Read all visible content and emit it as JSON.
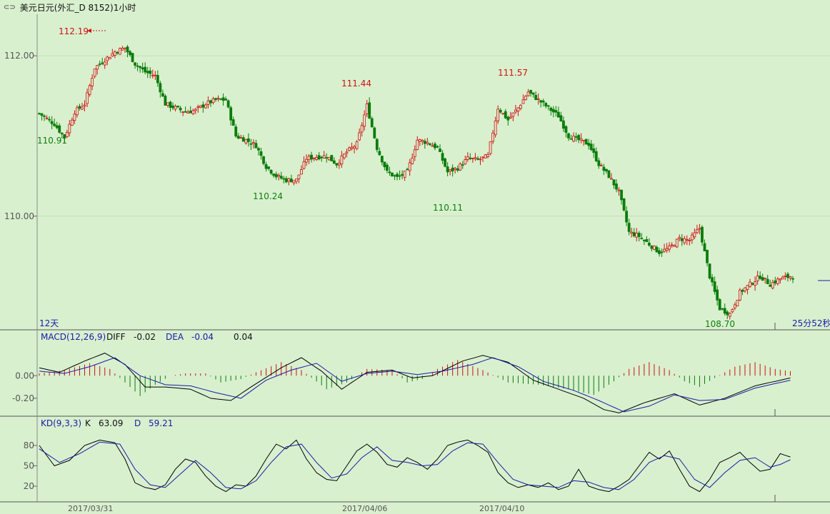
{
  "window": {
    "title": "美元日元(外汇_D 8152)1小时",
    "icon": "link-icon"
  },
  "colors": {
    "background": "#d9f0cf",
    "up": "#d01010",
    "down": "#0b7d0b",
    "line1": "#000000",
    "line2": "#1a1aa8",
    "annotation_high": "#d01010",
    "annotation_low": "#0b7d0b"
  },
  "chart_data": [
    {
      "type": "candlestick",
      "title": "",
      "yticks": [
        "112.00",
        "110.00"
      ],
      "ylim": [
        108.6,
        112.5
      ],
      "x_labels": [
        "2017/03/31",
        "2017/04/06",
        "2017/04/10"
      ],
      "corner_left": "12天",
      "corner_right": "25分52秒",
      "annotations": [
        {
          "label": "112.19",
          "kind": "high"
        },
        {
          "label": "110.91",
          "kind": "low"
        },
        {
          "label": "110.24",
          "kind": "low"
        },
        {
          "label": "111.44",
          "kind": "high"
        },
        {
          "label": "110.11",
          "kind": "low"
        },
        {
          "label": "111.57",
          "kind": "high"
        },
        {
          "label": "108.70",
          "kind": "low"
        }
      ],
      "close_path": [
        [
          0,
          111.28
        ],
        [
          6,
          111.15
        ],
        [
          10,
          110.98
        ],
        [
          14,
          111.3
        ],
        [
          18,
          111.4
        ],
        [
          22,
          111.85
        ],
        [
          26,
          111.95
        ],
        [
          30,
          112.05
        ],
        [
          34,
          112.1
        ],
        [
          38,
          111.9
        ],
        [
          42,
          111.8
        ],
        [
          46,
          111.75
        ],
        [
          50,
          111.4
        ],
        [
          54,
          111.35
        ],
        [
          58,
          111.3
        ],
        [
          62,
          111.32
        ],
        [
          66,
          111.4
        ],
        [
          70,
          111.45
        ],
        [
          74,
          111.45
        ],
        [
          78,
          111.0
        ],
        [
          82,
          110.95
        ],
        [
          86,
          110.88
        ],
        [
          90,
          110.62
        ],
        [
          94,
          110.5
        ],
        [
          98,
          110.45
        ],
        [
          102,
          110.45
        ],
        [
          106,
          110.72
        ],
        [
          110,
          110.74
        ],
        [
          114,
          110.75
        ],
        [
          118,
          110.65
        ],
        [
          122,
          110.8
        ],
        [
          126,
          110.9
        ],
        [
          130,
          111.38
        ],
        [
          134,
          110.85
        ],
        [
          138,
          110.55
        ],
        [
          142,
          110.48
        ],
        [
          146,
          110.55
        ],
        [
          150,
          110.95
        ],
        [
          154,
          110.92
        ],
        [
          158,
          110.85
        ],
        [
          162,
          110.55
        ],
        [
          166,
          110.6
        ],
        [
          170,
          110.72
        ],
        [
          174,
          110.7
        ],
        [
          178,
          110.75
        ],
        [
          182,
          111.35
        ],
        [
          186,
          111.2
        ],
        [
          190,
          111.35
        ],
        [
          194,
          111.55
        ],
        [
          198,
          111.45
        ],
        [
          202,
          111.35
        ],
        [
          206,
          111.25
        ],
        [
          210,
          111.0
        ],
        [
          214,
          110.95
        ],
        [
          218,
          110.9
        ],
        [
          222,
          110.65
        ],
        [
          226,
          110.5
        ],
        [
          230,
          110.3
        ],
        [
          234,
          109.8
        ],
        [
          238,
          109.75
        ],
        [
          242,
          109.65
        ],
        [
          246,
          109.55
        ],
        [
          250,
          109.6
        ],
        [
          254,
          109.72
        ],
        [
          258,
          109.7
        ],
        [
          262,
          109.85
        ],
        [
          266,
          109.25
        ],
        [
          270,
          108.85
        ],
        [
          274,
          108.78
        ],
        [
          278,
          109.05
        ],
        [
          282,
          109.15
        ],
        [
          286,
          109.25
        ],
        [
          290,
          109.15
        ],
        [
          294,
          109.22
        ],
        [
          298,
          109.25
        ]
      ]
    },
    {
      "type": "macd",
      "title": "MACD(12,26,9)",
      "series": [
        {
          "name": "DIFF",
          "value_label": "-0.02"
        },
        {
          "name": "DEA",
          "value_label": "-0.04"
        },
        {
          "name": "MACD",
          "value_label": "0.04"
        }
      ],
      "yticks": [
        "0.00",
        "-0.20"
      ],
      "ylim": [
        -0.34,
        0.28
      ],
      "hist_path": [
        [
          0,
          0.02
        ],
        [
          10,
          0.05
        ],
        [
          20,
          0.11
        ],
        [
          28,
          0.06
        ],
        [
          32,
          -0.02
        ],
        [
          40,
          -0.18
        ],
        [
          46,
          -0.08
        ],
        [
          52,
          0.0
        ],
        [
          58,
          0.02
        ],
        [
          66,
          0.02
        ],
        [
          72,
          -0.06
        ],
        [
          80,
          -0.03
        ],
        [
          86,
          0.03
        ],
        [
          96,
          0.12
        ],
        [
          104,
          0.05
        ],
        [
          114,
          -0.12
        ],
        [
          122,
          -0.06
        ],
        [
          130,
          0.06
        ],
        [
          140,
          0.05
        ],
        [
          146,
          -0.06
        ],
        [
          152,
          -0.03
        ],
        [
          158,
          0.06
        ],
        [
          166,
          0.14
        ],
        [
          176,
          0.05
        ],
        [
          186,
          -0.06
        ],
        [
          198,
          -0.08
        ],
        [
          210,
          -0.12
        ],
        [
          220,
          -0.17
        ],
        [
          228,
          -0.05
        ],
        [
          234,
          0.06
        ],
        [
          242,
          0.12
        ],
        [
          250,
          0.05
        ],
        [
          256,
          -0.05
        ],
        [
          262,
          -0.1
        ],
        [
          268,
          -0.02
        ],
        [
          276,
          0.08
        ],
        [
          284,
          0.12
        ],
        [
          292,
          0.06
        ],
        [
          298,
          0.04
        ]
      ],
      "diff_path": [
        [
          0,
          0.07
        ],
        [
          8,
          0.03
        ],
        [
          18,
          0.13
        ],
        [
          26,
          0.2
        ],
        [
          34,
          0.1
        ],
        [
          42,
          -0.1
        ],
        [
          50,
          -0.1
        ],
        [
          60,
          -0.12
        ],
        [
          68,
          -0.2
        ],
        [
          76,
          -0.22
        ],
        [
          84,
          -0.1
        ],
        [
          96,
          0.07
        ],
        [
          104,
          0.16
        ],
        [
          112,
          0.04
        ],
        [
          120,
          -0.12
        ],
        [
          130,
          0.03
        ],
        [
          140,
          0.05
        ],
        [
          148,
          -0.02
        ],
        [
          156,
          0.0
        ],
        [
          168,
          0.13
        ],
        [
          176,
          0.18
        ],
        [
          186,
          0.12
        ],
        [
          196,
          -0.04
        ],
        [
          206,
          -0.12
        ],
        [
          216,
          -0.2
        ],
        [
          224,
          -0.3
        ],
        [
          230,
          -0.33
        ],
        [
          240,
          -0.24
        ],
        [
          252,
          -0.16
        ],
        [
          262,
          -0.26
        ],
        [
          272,
          -0.2
        ],
        [
          284,
          -0.09
        ],
        [
          298,
          -0.02
        ]
      ],
      "dea_path": [
        [
          0,
          0.04
        ],
        [
          10,
          0.02
        ],
        [
          20,
          0.08
        ],
        [
          30,
          0.16
        ],
        [
          40,
          0.0
        ],
        [
          50,
          -0.08
        ],
        [
          60,
          -0.09
        ],
        [
          70,
          -0.15
        ],
        [
          80,
          -0.2
        ],
        [
          90,
          -0.04
        ],
        [
          100,
          0.05
        ],
        [
          110,
          0.11
        ],
        [
          120,
          -0.05
        ],
        [
          130,
          0.02
        ],
        [
          140,
          0.04
        ],
        [
          150,
          0.01
        ],
        [
          160,
          0.04
        ],
        [
          172,
          0.1
        ],
        [
          180,
          0.16
        ],
        [
          190,
          0.08
        ],
        [
          200,
          -0.05
        ],
        [
          212,
          -0.13
        ],
        [
          222,
          -0.22
        ],
        [
          232,
          -0.32
        ],
        [
          242,
          -0.27
        ],
        [
          252,
          -0.17
        ],
        [
          262,
          -0.22
        ],
        [
          272,
          -0.21
        ],
        [
          284,
          -0.11
        ],
        [
          298,
          -0.04
        ]
      ]
    },
    {
      "type": "kd",
      "title": "KD(9,3,3)",
      "series": [
        {
          "name": "K",
          "value_label": "63.09"
        },
        {
          "name": "D",
          "value_label": "59.21"
        }
      ],
      "yticks": [
        "80",
        "50",
        "20"
      ],
      "ylim": [
        0,
        100
      ],
      "k_path": [
        [
          0,
          80
        ],
        [
          6,
          50
        ],
        [
          12,
          58
        ],
        [
          18,
          80
        ],
        [
          24,
          88
        ],
        [
          30,
          84
        ],
        [
          34,
          60
        ],
        [
          38,
          25
        ],
        [
          42,
          18
        ],
        [
          46,
          15
        ],
        [
          50,
          22
        ],
        [
          54,
          45
        ],
        [
          58,
          60
        ],
        [
          62,
          55
        ],
        [
          66,
          35
        ],
        [
          70,
          20
        ],
        [
          74,
          12
        ],
        [
          78,
          22
        ],
        [
          82,
          20
        ],
        [
          86,
          35
        ],
        [
          90,
          60
        ],
        [
          94,
          82
        ],
        [
          98,
          75
        ],
        [
          102,
          88
        ],
        [
          106,
          60
        ],
        [
          110,
          40
        ],
        [
          114,
          30
        ],
        [
          118,
          28
        ],
        [
          122,
          50
        ],
        [
          126,
          72
        ],
        [
          130,
          82
        ],
        [
          134,
          70
        ],
        [
          138,
          52
        ],
        [
          142,
          48
        ],
        [
          146,
          62
        ],
        [
          150,
          55
        ],
        [
          154,
          45
        ],
        [
          158,
          60
        ],
        [
          162,
          80
        ],
        [
          166,
          85
        ],
        [
          170,
          88
        ],
        [
          174,
          80
        ],
        [
          178,
          70
        ],
        [
          182,
          40
        ],
        [
          186,
          25
        ],
        [
          190,
          18
        ],
        [
          194,
          22
        ],
        [
          198,
          18
        ],
        [
          202,
          25
        ],
        [
          206,
          15
        ],
        [
          210,
          20
        ],
        [
          214,
          45
        ],
        [
          218,
          20
        ],
        [
          222,
          15
        ],
        [
          226,
          12
        ],
        [
          230,
          20
        ],
        [
          234,
          30
        ],
        [
          238,
          50
        ],
        [
          242,
          70
        ],
        [
          246,
          60
        ],
        [
          250,
          72
        ],
        [
          254,
          45
        ],
        [
          258,
          20
        ],
        [
          262,
          12
        ],
        [
          266,
          30
        ],
        [
          270,
          55
        ],
        [
          274,
          62
        ],
        [
          278,
          70
        ],
        [
          282,
          55
        ],
        [
          286,
          42
        ],
        [
          290,
          45
        ],
        [
          294,
          68
        ],
        [
          298,
          63
        ]
      ],
      "d_path": [
        [
          0,
          75
        ],
        [
          8,
          55
        ],
        [
          16,
          68
        ],
        [
          24,
          85
        ],
        [
          32,
          82
        ],
        [
          38,
          45
        ],
        [
          44,
          22
        ],
        [
          50,
          18
        ],
        [
          56,
          38
        ],
        [
          62,
          58
        ],
        [
          68,
          40
        ],
        [
          74,
          18
        ],
        [
          80,
          16
        ],
        [
          86,
          28
        ],
        [
          92,
          55
        ],
        [
          98,
          78
        ],
        [
          104,
          82
        ],
        [
          110,
          55
        ],
        [
          116,
          32
        ],
        [
          122,
          38
        ],
        [
          128,
          62
        ],
        [
          134,
          78
        ],
        [
          140,
          58
        ],
        [
          146,
          55
        ],
        [
          152,
          50
        ],
        [
          158,
          52
        ],
        [
          164,
          72
        ],
        [
          170,
          84
        ],
        [
          176,
          82
        ],
        [
          182,
          55
        ],
        [
          188,
          30
        ],
        [
          194,
          22
        ],
        [
          200,
          20
        ],
        [
          206,
          18
        ],
        [
          212,
          28
        ],
        [
          218,
          26
        ],
        [
          224,
          18
        ],
        [
          230,
          15
        ],
        [
          236,
          30
        ],
        [
          242,
          55
        ],
        [
          248,
          65
        ],
        [
          254,
          60
        ],
        [
          260,
          30
        ],
        [
          266,
          18
        ],
        [
          272,
          40
        ],
        [
          278,
          58
        ],
        [
          284,
          62
        ],
        [
          290,
          48
        ],
        [
          294,
          52
        ],
        [
          298,
          59
        ]
      ]
    }
  ]
}
